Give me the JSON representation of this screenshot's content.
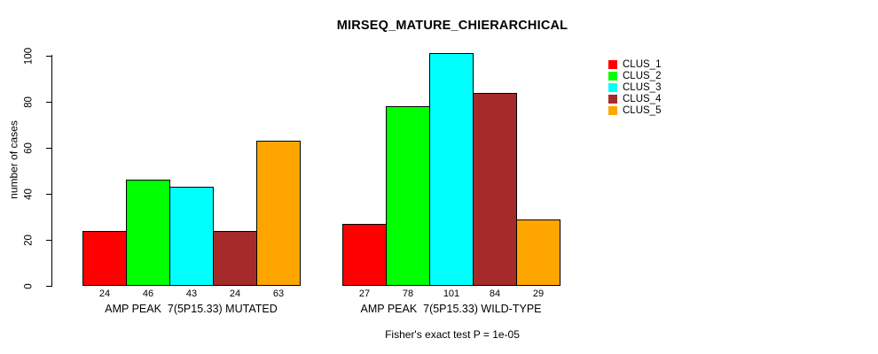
{
  "chart_data": {
    "type": "bar",
    "title": "MIRSEQ_MATURE_CHIERARCHICAL",
    "xlabel": "",
    "ylabel": "number of cases",
    "ylim": [
      0,
      100
    ],
    "yticks": [
      0,
      20,
      40,
      60,
      80,
      100
    ],
    "grid": false,
    "legend_position": "top-right",
    "categories": [
      "AMP PEAK  7(5P15.33) MUTATED",
      "AMP PEAK  7(5P15.33) WILD-TYPE"
    ],
    "series": [
      {
        "name": "CLUS_1",
        "color": "#ff0000",
        "values": [
          24,
          27
        ]
      },
      {
        "name": "CLUS_2",
        "color": "#00ff00",
        "values": [
          46,
          78
        ]
      },
      {
        "name": "CLUS_3",
        "color": "#00ffff",
        "values": [
          43,
          101
        ]
      },
      {
        "name": "CLUS_4",
        "color": "#a52a2a",
        "values": [
          24,
          84
        ]
      },
      {
        "name": "CLUS_5",
        "color": "#ffa500",
        "values": [
          63,
          29
        ]
      }
    ],
    "bar_value_labels": [
      [
        24,
        46,
        43,
        24,
        63
      ],
      [
        27,
        78,
        101,
        84,
        29
      ]
    ],
    "annotation": "Fisher's exact test P = 1e-05",
    "axis_color": "#000000",
    "bar_border_color": "#000000"
  }
}
